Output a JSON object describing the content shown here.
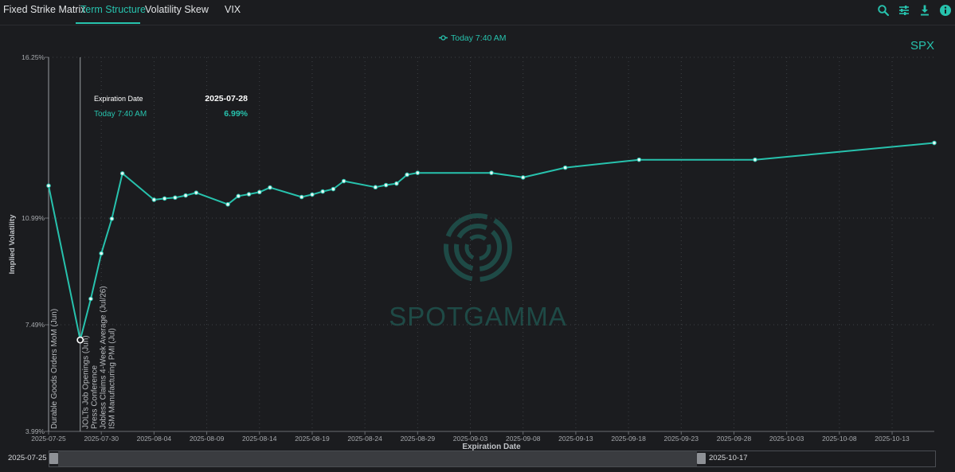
{
  "tabs": [
    {
      "label": "Fixed Strike Matrix",
      "active": false
    },
    {
      "label": "Term Structure",
      "active": true
    },
    {
      "label": "Volatility Skew",
      "active": false
    },
    {
      "label": "VIX",
      "active": false
    }
  ],
  "toolbar": {
    "icons": [
      "search-icon",
      "sliders-icon",
      "download-icon",
      "info-icon"
    ]
  },
  "watermark": "SPOTGAMMA",
  "range": {
    "start": "2025-07-25",
    "end": "2025-10-17"
  },
  "chart_data": {
    "type": "line",
    "symbol": "SPX",
    "title": "",
    "xlabel": "Expiration Date",
    "ylabel": "Implied Volatility",
    "legend": [
      "Today 7:40 AM"
    ],
    "legend_position": "top-center",
    "y_ticks": [
      "3.99%",
      "7.49%",
      "10.99%",
      "16.25%"
    ],
    "x_ticks": [
      "2025-07-25",
      "2025-07-30",
      "2025-08-04",
      "2025-08-09",
      "2025-08-14",
      "2025-08-19",
      "2025-08-24",
      "2025-08-29",
      "2025-09-03",
      "2025-09-08",
      "2025-09-13",
      "2025-09-18",
      "2025-09-23",
      "2025-09-28",
      "2025-10-03",
      "2025-10-08",
      "2025-10-13"
    ],
    "grid": true,
    "series": [
      {
        "name": "Today 7:40 AM",
        "color": "#27c2ad",
        "points": [
          {
            "x": "2025-07-25",
            "y": 12.05
          },
          {
            "x": "2025-07-28",
            "y": 6.99
          },
          {
            "x": "2025-07-29",
            "y": 8.34
          },
          {
            "x": "2025-07-30",
            "y": 9.83
          },
          {
            "x": "2025-07-31",
            "y": 10.97
          },
          {
            "x": "2025-08-01",
            "y": 12.45
          },
          {
            "x": "2025-08-04",
            "y": 11.59
          },
          {
            "x": "2025-08-05",
            "y": 11.63
          },
          {
            "x": "2025-08-06",
            "y": 11.66
          },
          {
            "x": "2025-08-07",
            "y": 11.73
          },
          {
            "x": "2025-08-08",
            "y": 11.82
          },
          {
            "x": "2025-08-11",
            "y": 11.44
          },
          {
            "x": "2025-08-12",
            "y": 11.71
          },
          {
            "x": "2025-08-13",
            "y": 11.77
          },
          {
            "x": "2025-08-14",
            "y": 11.84
          },
          {
            "x": "2025-08-15",
            "y": 11.99
          },
          {
            "x": "2025-08-18",
            "y": 11.68
          },
          {
            "x": "2025-08-19",
            "y": 11.76
          },
          {
            "x": "2025-08-20",
            "y": 11.86
          },
          {
            "x": "2025-08-21",
            "y": 11.94
          },
          {
            "x": "2025-08-22",
            "y": 12.2
          },
          {
            "x": "2025-08-25",
            "y": 12.0
          },
          {
            "x": "2025-08-26",
            "y": 12.07
          },
          {
            "x": "2025-08-27",
            "y": 12.12
          },
          {
            "x": "2025-08-28",
            "y": 12.41
          },
          {
            "x": "2025-08-29",
            "y": 12.47
          },
          {
            "x": "2025-09-05",
            "y": 12.47
          },
          {
            "x": "2025-09-08",
            "y": 12.32
          },
          {
            "x": "2025-09-12",
            "y": 12.64
          },
          {
            "x": "2025-09-19",
            "y": 12.9
          },
          {
            "x": "2025-09-30",
            "y": 12.9
          },
          {
            "x": "2025-10-17",
            "y": 13.45
          }
        ]
      }
    ],
    "tooltip": {
      "label": "Expiration Date",
      "date": "2025-07-28",
      "series_label": "Today 7:40 AM",
      "value": "6.99%"
    },
    "annotations": [
      {
        "x": "2025-07-25",
        "text": "Durable Goods Orders MoM (Jun)"
      },
      {
        "x": "2025-07-28",
        "text": "JOLTs Job Openings (Jun)"
      },
      {
        "x": "2025-07-28",
        "text": "Press Conference"
      },
      {
        "x": "2025-07-28",
        "text": "Jobless Claims 4-Week Average (Jul/26)"
      },
      {
        "x": "2025-07-28",
        "text": "ISM Manufacturing PMI (Jul)"
      }
    ]
  }
}
